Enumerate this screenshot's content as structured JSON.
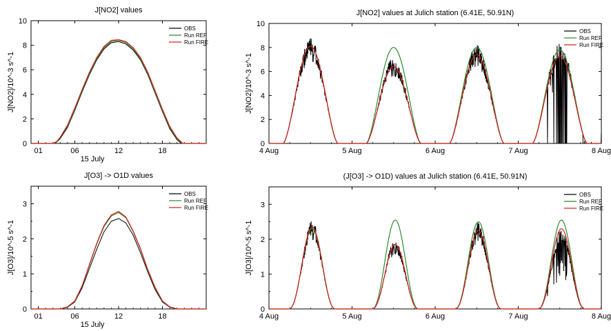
{
  "chart_data": [
    {
      "type": "line",
      "title": "J[NO2] values",
      "xlabel": "15  July",
      "ylabel": "J[NO2]/10^-3 s^-1",
      "xlim": [
        0,
        24
      ],
      "ylim": [
        0,
        10
      ],
      "xticks": [
        1,
        6,
        12,
        18
      ],
      "xtick_labels": [
        "01",
        "06",
        "12",
        "18"
      ],
      "yticks": [
        0,
        2,
        4,
        6,
        8,
        10
      ],
      "legend": "top-right",
      "kind": "diurnal",
      "series": [
        {
          "name": "OBS",
          "color": "#000000",
          "points": [
            [
              0,
              0
            ],
            [
              3,
              0
            ],
            [
              3.5,
              0.1
            ],
            [
              4,
              0.4
            ],
            [
              5,
              1.3
            ],
            [
              6,
              2.7
            ],
            [
              7,
              4.2
            ],
            [
              8,
              5.6
            ],
            [
              9,
              6.8
            ],
            [
              10,
              7.7
            ],
            [
              11,
              8.2
            ],
            [
              12,
              8.3
            ],
            [
              13,
              8.1
            ],
            [
              14,
              7.6
            ],
            [
              15,
              6.8
            ],
            [
              16,
              5.6
            ],
            [
              17,
              4.1
            ],
            [
              18,
              2.6
            ],
            [
              19,
              1.2
            ],
            [
              20,
              0.3
            ],
            [
              20.6,
              0
            ],
            [
              24,
              0
            ]
          ]
        },
        {
          "name": "Run REF",
          "color": "#2e8b2e",
          "points": [
            [
              0,
              0
            ],
            [
              3,
              0
            ],
            [
              3.5,
              0.1
            ],
            [
              4,
              0.5
            ],
            [
              5,
              1.4
            ],
            [
              6,
              2.8
            ],
            [
              7,
              4.3
            ],
            [
              8,
              5.7
            ],
            [
              9,
              6.9
            ],
            [
              10,
              7.8
            ],
            [
              11,
              8.3
            ],
            [
              12,
              8.4
            ],
            [
              13,
              8.2
            ],
            [
              14,
              7.7
            ],
            [
              15,
              6.9
            ],
            [
              16,
              5.7
            ],
            [
              17,
              4.2
            ],
            [
              18,
              2.7
            ],
            [
              19,
              1.3
            ],
            [
              20,
              0.4
            ],
            [
              20.7,
              0
            ],
            [
              24,
              0
            ]
          ]
        },
        {
          "name": "Run FIRE",
          "color": "#d62020",
          "points": [
            [
              0,
              0
            ],
            [
              3,
              0
            ],
            [
              3.5,
              0.15
            ],
            [
              4,
              0.5
            ],
            [
              5,
              1.5
            ],
            [
              6,
              2.9
            ],
            [
              7,
              4.4
            ],
            [
              8,
              5.8
            ],
            [
              9,
              7.0
            ],
            [
              10,
              7.9
            ],
            [
              11,
              8.4
            ],
            [
              12,
              8.45
            ],
            [
              13,
              8.3
            ],
            [
              14,
              7.8
            ],
            [
              15,
              7.0
            ],
            [
              16,
              5.8
            ],
            [
              17,
              4.3
            ],
            [
              18,
              2.8
            ],
            [
              19,
              1.4
            ],
            [
              20,
              0.45
            ],
            [
              20.8,
              0
            ],
            [
              24,
              0
            ]
          ]
        }
      ]
    },
    {
      "type": "line",
      "title": "J[NO2] values at Julich station (6.41E, 50.91N)",
      "xlabel": "",
      "ylabel": "J[NO2]/10^-3 s^-1",
      "xlim": [
        0,
        4
      ],
      "ylim": [
        0,
        10
      ],
      "xticks": [
        0,
        1,
        2,
        3,
        4
      ],
      "xtick_labels": [
        "4 Aug",
        "5 Aug",
        "6 Aug",
        "7 Aug",
        "8 Aug"
      ],
      "yticks": [
        0,
        2,
        4,
        6,
        8,
        10
      ],
      "legend": "top-right",
      "kind": "multiday",
      "series": [
        {
          "name": "OBS",
          "color": "#000000",
          "peaks": [
            7.8,
            6.4,
            7.3,
            7.6
          ],
          "extra": [
            [
              3.8,
              0.2
            ],
            [
              3.88,
              0.1
            ],
            [
              3.9,
              0.0
            ],
            [
              4.0,
              1.0
            ]
          ]
        },
        {
          "name": "Run REF",
          "color": "#2e8b2e",
          "peaks": [
            8.1,
            8.0,
            8.0,
            7.8
          ]
        },
        {
          "name": "Run FIRE",
          "color": "#d62020",
          "peaks": [
            8.1,
            6.4,
            7.4,
            7.3
          ]
        }
      ]
    },
    {
      "type": "line",
      "title": "J[O3] -> O1D  values",
      "xlabel": "15  July",
      "ylabel": "J[O3]/10^-5 s^-1",
      "xlim": [
        0,
        24
      ],
      "ylim": [
        0,
        3.5
      ],
      "xticks": [
        1,
        6,
        12,
        18
      ],
      "xtick_labels": [
        "01",
        "06",
        "12",
        "18"
      ],
      "yticks": [
        0,
        1,
        2,
        3
      ],
      "legend": "top-right",
      "kind": "diurnal",
      "series": [
        {
          "name": "OBS",
          "color": "#000000",
          "points": [
            [
              0,
              0
            ],
            [
              4,
              0
            ],
            [
              5,
              0.05
            ],
            [
              6,
              0.2
            ],
            [
              7,
              0.6
            ],
            [
              8,
              1.15
            ],
            [
              9,
              1.7
            ],
            [
              10,
              2.2
            ],
            [
              11,
              2.5
            ],
            [
              12,
              2.58
            ],
            [
              13,
              2.45
            ],
            [
              14,
              2.1
            ],
            [
              15,
              1.6
            ],
            [
              16,
              1.05
            ],
            [
              17,
              0.55
            ],
            [
              18,
              0.2
            ],
            [
              19,
              0.05
            ],
            [
              20,
              0
            ],
            [
              24,
              0
            ]
          ]
        },
        {
          "name": "Run REF",
          "color": "#2e8b2e",
          "points": [
            [
              0,
              0
            ],
            [
              4,
              0
            ],
            [
              5,
              0.06
            ],
            [
              6,
              0.22
            ],
            [
              7,
              0.65
            ],
            [
              8,
              1.25
            ],
            [
              9,
              1.85
            ],
            [
              10,
              2.35
            ],
            [
              11,
              2.65
            ],
            [
              12,
              2.75
            ],
            [
              13,
              2.6
            ],
            [
              14,
              2.2
            ],
            [
              15,
              1.7
            ],
            [
              16,
              1.1
            ],
            [
              17,
              0.6
            ],
            [
              18,
              0.22
            ],
            [
              19,
              0.06
            ],
            [
              20,
              0
            ],
            [
              24,
              0
            ]
          ]
        },
        {
          "name": "Run FIRE",
          "color": "#d62020",
          "points": [
            [
              0,
              0
            ],
            [
              4,
              0
            ],
            [
              5,
              0.06
            ],
            [
              6,
              0.23
            ],
            [
              7,
              0.66
            ],
            [
              8,
              1.27
            ],
            [
              9,
              1.87
            ],
            [
              10,
              2.38
            ],
            [
              11,
              2.68
            ],
            [
              12,
              2.78
            ],
            [
              13,
              2.62
            ],
            [
              14,
              2.22
            ],
            [
              15,
              1.72
            ],
            [
              16,
              1.12
            ],
            [
              17,
              0.62
            ],
            [
              18,
              0.23
            ],
            [
              19,
              0.06
            ],
            [
              20,
              0
            ],
            [
              24,
              0
            ]
          ]
        }
      ]
    },
    {
      "type": "line",
      "title": "(J[O3] -> O1D) values at Julich station (6.41E, 50.91N)",
      "xlabel": "",
      "ylabel": "J[O3]/10^-5 s^-1",
      "xlim": [
        0,
        4
      ],
      "ylim": [
        0,
        3.5
      ],
      "xticks": [
        0,
        1,
        2,
        3,
        4
      ],
      "xtick_labels": [
        "4 Aug",
        "5 Aug",
        "6 Aug",
        "7 Aug",
        "8 Aug"
      ],
      "yticks": [
        0,
        1,
        2,
        3
      ],
      "legend": "top-right",
      "kind": "multiday_o3",
      "series": [
        {
          "name": "OBS",
          "color": "#000000",
          "peaks": [
            2.25,
            1.8,
            2.2,
            2.1
          ],
          "extra": [
            [
              3.78,
              0.05
            ],
            [
              3.85,
              0.0
            ],
            [
              3.9,
              0.0
            ],
            [
              4.0,
              0.1
            ]
          ]
        },
        {
          "name": "Run REF",
          "color": "#2e8b2e",
          "peaks": [
            2.3,
            2.55,
            2.5,
            2.55
          ]
        },
        {
          "name": "Run FIRE",
          "color": "#d62020",
          "peaks": [
            2.35,
            1.85,
            2.25,
            2.3
          ]
        }
      ]
    }
  ]
}
